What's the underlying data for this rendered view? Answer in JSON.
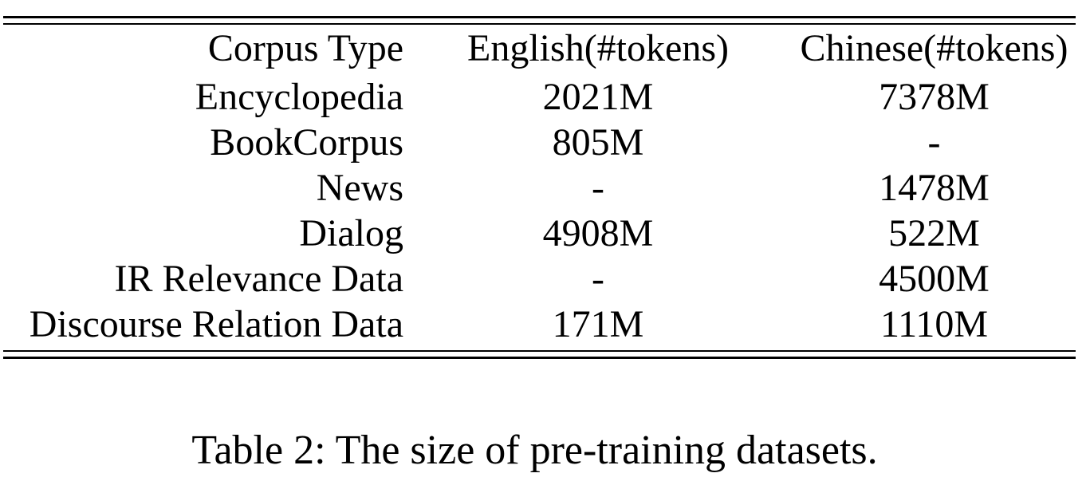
{
  "table": {
    "headers": {
      "corpus_type": "Corpus Type",
      "english": "English(#tokens)",
      "chinese": "Chinese(#tokens)"
    },
    "rows": [
      {
        "corpus_type": "Encyclopedia",
        "english": "2021M",
        "chinese": "7378M"
      },
      {
        "corpus_type": "BookCorpus",
        "english": "805M",
        "chinese": "-"
      },
      {
        "corpus_type": "News",
        "english": "-",
        "chinese": "1478M"
      },
      {
        "corpus_type": "Dialog",
        "english": "4908M",
        "chinese": "522M"
      },
      {
        "corpus_type": "IR Relevance Data",
        "english": "-",
        "chinese": "4500M"
      },
      {
        "corpus_type": "Discourse Relation Data",
        "english": "171M",
        "chinese": "1110M"
      }
    ]
  },
  "caption": "Table 2: The size of pre-training datasets."
}
